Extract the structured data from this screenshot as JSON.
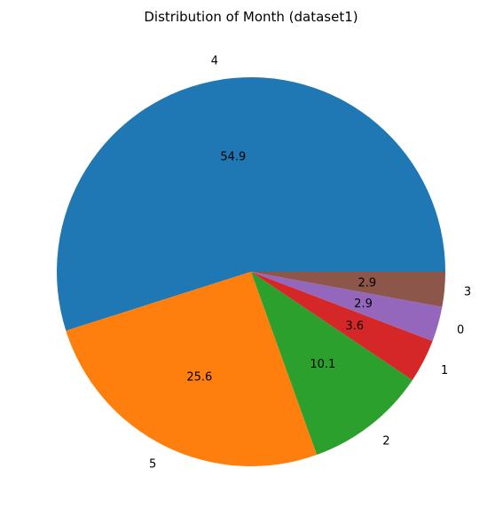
{
  "chart_data": {
    "type": "pie",
    "title": "Distribution of Month (dataset1)",
    "start_angle_deg": 0,
    "direction": "counterclockwise",
    "slices": [
      {
        "label": "4",
        "value": 54.9,
        "value_label": "54.9",
        "color": "#1f77b4"
      },
      {
        "label": "5",
        "value": 25.6,
        "value_label": "25.6",
        "color": "#ff7f0e"
      },
      {
        "label": "2",
        "value": 10.1,
        "value_label": "10.1",
        "color": "#2ca02c"
      },
      {
        "label": "1",
        "value": 3.6,
        "value_label": "3.6",
        "color": "#d62728"
      },
      {
        "label": "0",
        "value": 2.9,
        "value_label": "2.9",
        "color": "#9467bd"
      },
      {
        "label": "3",
        "value": 2.9,
        "value_label": "2.9",
        "color": "#8c564b"
      }
    ]
  }
}
